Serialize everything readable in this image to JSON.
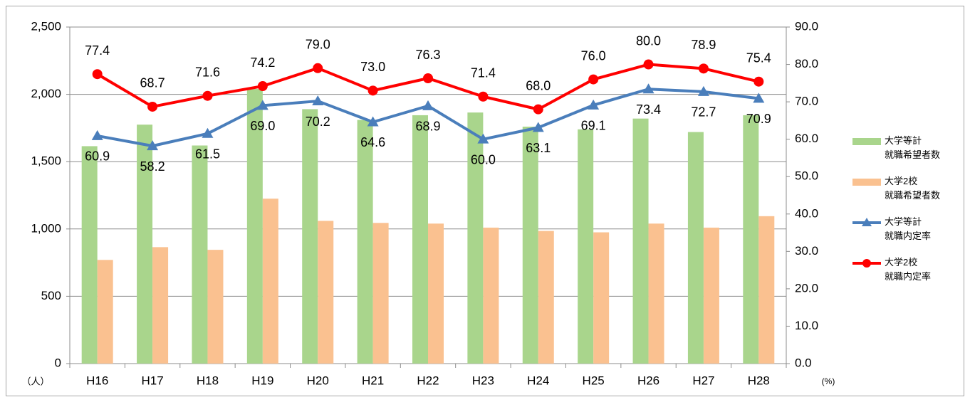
{
  "chart_data": {
    "type": "combo",
    "categories": [
      "H16",
      "H17",
      "H18",
      "H19",
      "H20",
      "H21",
      "H22",
      "H23",
      "H24",
      "H25",
      "H26",
      "H27",
      "H28"
    ],
    "y_label": "（人）",
    "y2_label": "(%)",
    "ylim": [
      0,
      2500
    ],
    "yticks": [
      {
        "value": 0,
        "label": "0"
      },
      {
        "value": 500,
        "label": "500"
      },
      {
        "value": 1000,
        "label": "1,000"
      },
      {
        "value": 1500,
        "label": "1,500"
      },
      {
        "value": 2000,
        "label": "2,000"
      },
      {
        "value": 2500,
        "label": "2,500"
      }
    ],
    "y2lim": [
      0,
      90
    ],
    "y2ticks": [
      {
        "value": 0,
        "label": "0.0"
      },
      {
        "value": 10,
        "label": "10.0"
      },
      {
        "value": 20,
        "label": "20.0"
      },
      {
        "value": 30,
        "label": "30.0"
      },
      {
        "value": 40,
        "label": "40.0"
      },
      {
        "value": 50,
        "label": "50.0"
      },
      {
        "value": 60,
        "label": "60.0"
      },
      {
        "value": 70,
        "label": "70.0"
      },
      {
        "value": 80,
        "label": "80.0"
      },
      {
        "value": 90,
        "label": "90.0"
      }
    ],
    "grid": true,
    "legend": "right",
    "series": [
      {
        "name": "大学等計\n就職希望者数",
        "type": "bar",
        "color": "#a9d58c",
        "values": [
          1615,
          1775,
          1620,
          2040,
          1890,
          1810,
          1845,
          1865,
          1760,
          1740,
          1820,
          1720,
          1845
        ]
      },
      {
        "name": "大学2校\n就職希望者数",
        "type": "bar",
        "color": "#fac190",
        "values": [
          770,
          865,
          845,
          1225,
          1060,
          1045,
          1040,
          1010,
          985,
          975,
          1040,
          1010,
          1095
        ]
      },
      {
        "name": "大学等計\n就職内定率",
        "type": "line",
        "axis": "y2",
        "marker": "triangle",
        "color": "#4a7ebb",
        "label_position": "below",
        "values": [
          60.9,
          58.2,
          61.5,
          69.0,
          70.2,
          64.6,
          68.9,
          60.0,
          63.1,
          69.1,
          73.4,
          72.7,
          70.9
        ],
        "value_labels": [
          "60.9",
          "58.2",
          "61.5",
          "69.0",
          "70.2",
          "64.6",
          "68.9",
          "60.0",
          "63.1",
          "69.1",
          "73.4",
          "72.7",
          "70.9"
        ]
      },
      {
        "name": "大学2校\n就職内定率",
        "type": "line",
        "axis": "y2",
        "marker": "circle",
        "color": "#ff0000",
        "label_position": "above",
        "values": [
          77.4,
          68.7,
          71.6,
          74.2,
          79.0,
          73.0,
          76.3,
          71.4,
          68.0,
          76.0,
          80.0,
          78.9,
          75.4
        ],
        "value_labels": [
          "77.4",
          "68.7",
          "71.6",
          "74.2",
          "79.0",
          "73.0",
          "76.3",
          "71.4",
          "68.0",
          "76.0",
          "80.0",
          "78.9",
          "75.4"
        ]
      }
    ]
  }
}
